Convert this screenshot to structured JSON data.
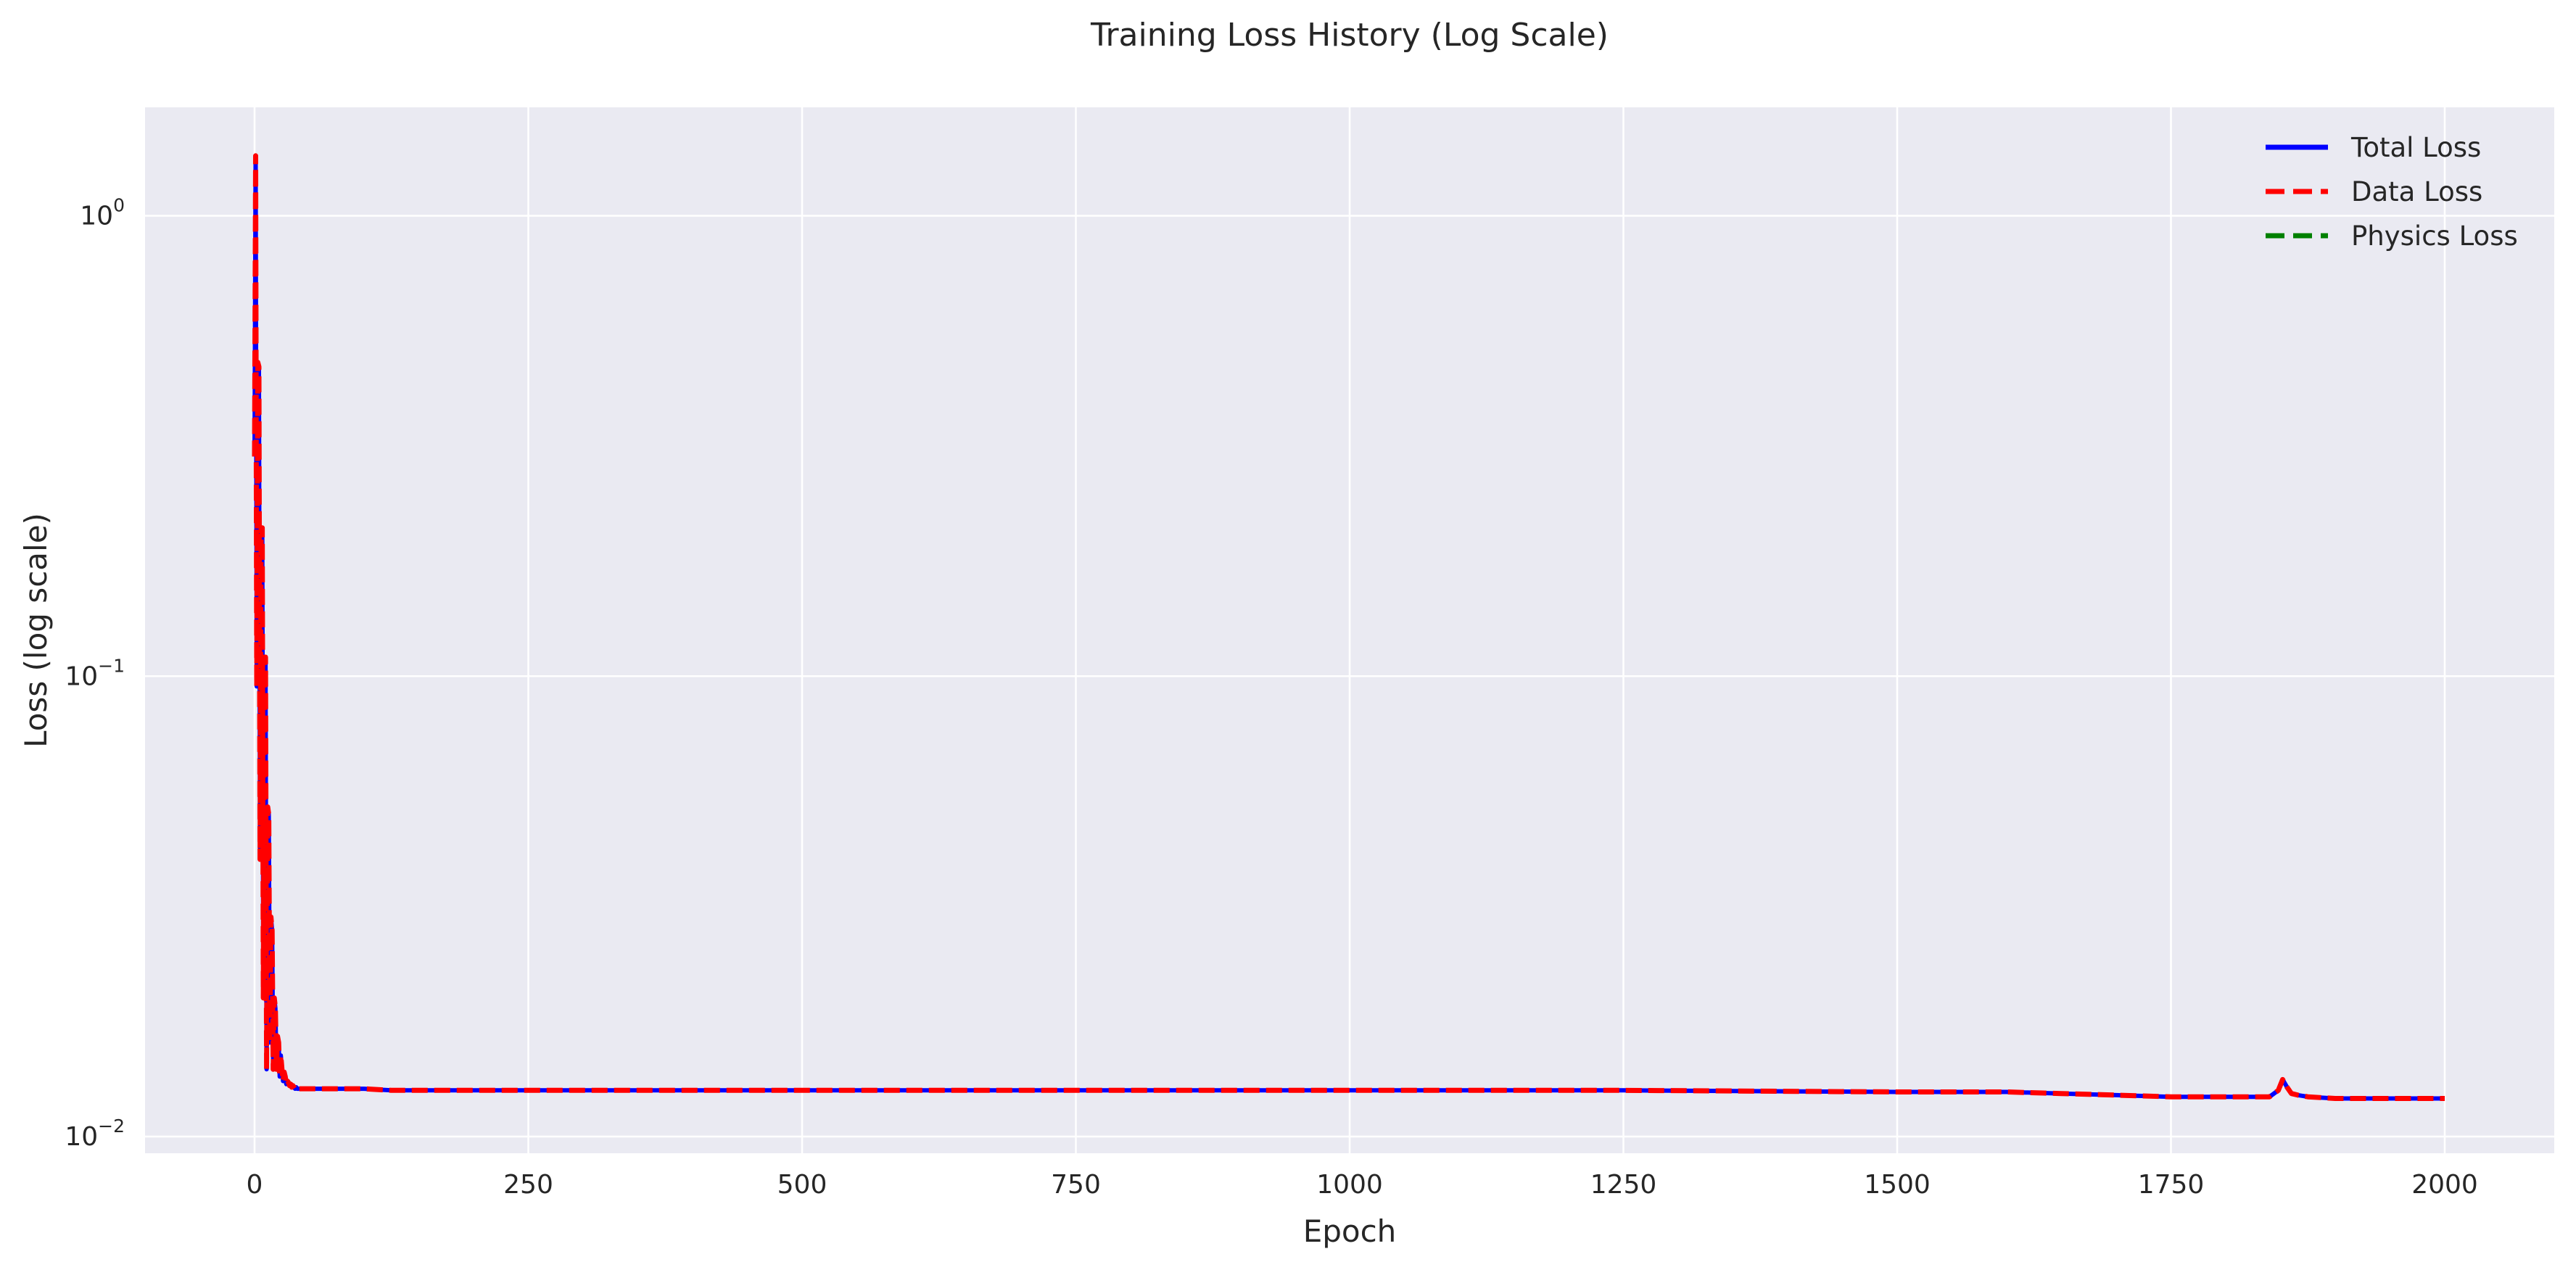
{
  "chart_data": {
    "type": "line",
    "title": "Training Loss History (Log Scale)",
    "xlabel": "Epoch",
    "ylabel": "Loss (log scale)",
    "yscale": "log",
    "xlim": [
      -100,
      2100
    ],
    "ylim": [
      0.0092,
      1.72
    ],
    "x_ticks": [
      0,
      250,
      500,
      750,
      1000,
      1250,
      1500,
      1750,
      2000
    ],
    "x_tick_labels": [
      "0",
      "250",
      "500",
      "750",
      "1000",
      "1250",
      "1500",
      "1750",
      "2000"
    ],
    "y_ticks": [
      0.01,
      0.1,
      1
    ],
    "y_tick_labels": [
      {
        "base": "10",
        "exp": "−2"
      },
      {
        "base": "10",
        "exp": "−1"
      },
      {
        "base": "10",
        "exp": "0"
      }
    ],
    "grid": true,
    "legend_position": "top-right",
    "series": [
      {
        "name": "Total Loss",
        "color": "#0000ff",
        "style": "solid",
        "x": [
          0,
          1,
          2,
          3,
          4,
          5,
          6,
          7,
          8,
          9,
          10,
          11,
          12,
          13,
          14,
          15,
          16,
          17,
          18,
          19,
          20,
          21,
          22,
          23,
          24,
          25,
          26,
          27,
          28,
          29,
          30,
          31,
          32,
          33,
          34,
          35,
          36,
          37,
          38,
          39,
          40,
          42,
          44,
          46,
          48,
          50,
          52,
          54,
          56,
          58,
          60,
          65,
          70,
          75,
          80,
          90,
          100,
          125,
          150,
          200,
          300,
          500,
          750,
          1000,
          1250,
          1500,
          1600,
          1650,
          1700,
          1750,
          1800,
          1840,
          1848,
          1852,
          1856,
          1860,
          1866,
          1875,
          1900,
          1950,
          2000
        ],
        "y": [
          0.3,
          1.35,
          0.095,
          0.48,
          0.47,
          0.04,
          0.21,
          0.21,
          0.02,
          0.11,
          0.11,
          0.014,
          0.052,
          0.05,
          0.016,
          0.03,
          0.028,
          0.014,
          0.02,
          0.019,
          0.014,
          0.0165,
          0.016,
          0.0135,
          0.015,
          0.014,
          0.0132,
          0.0138,
          0.0135,
          0.013,
          0.0132,
          0.0131,
          0.0129,
          0.013,
          0.0128,
          0.0129,
          0.0128,
          0.0127,
          0.0128,
          0.0127,
          0.0127,
          0.0127,
          0.0127,
          0.0127,
          0.0127,
          0.0127,
          0.0127,
          0.0127,
          0.0127,
          0.0127,
          0.0127,
          0.0127,
          0.0127,
          0.0127,
          0.0127,
          0.0127,
          0.0127,
          0.0126,
          0.0126,
          0.0126,
          0.0126,
          0.0126,
          0.0126,
          0.0126,
          0.0126,
          0.0125,
          0.0125,
          0.0124,
          0.0123,
          0.0122,
          0.0122,
          0.0122,
          0.0126,
          0.0133,
          0.0128,
          0.0124,
          0.0123,
          0.0122,
          0.0121,
          0.0121,
          0.0121
        ]
      },
      {
        "name": "Data Loss",
        "color": "#ff0000",
        "style": "dashed",
        "x": [
          0,
          1,
          2,
          3,
          4,
          5,
          6,
          7,
          8,
          9,
          10,
          11,
          12,
          13,
          14,
          15,
          16,
          17,
          18,
          19,
          20,
          21,
          22,
          23,
          24,
          25,
          26,
          27,
          28,
          29,
          30,
          31,
          32,
          33,
          34,
          35,
          36,
          37,
          38,
          39,
          40,
          42,
          44,
          46,
          48,
          50,
          52,
          54,
          56,
          58,
          60,
          65,
          70,
          75,
          80,
          90,
          100,
          125,
          150,
          200,
          300,
          500,
          750,
          1000,
          1250,
          1500,
          1600,
          1650,
          1700,
          1750,
          1800,
          1840,
          1848,
          1852,
          1856,
          1860,
          1866,
          1875,
          1900,
          1950,
          2000
        ],
        "y": [
          0.3,
          1.35,
          0.095,
          0.48,
          0.47,
          0.04,
          0.21,
          0.21,
          0.02,
          0.11,
          0.11,
          0.014,
          0.052,
          0.05,
          0.016,
          0.03,
          0.028,
          0.014,
          0.02,
          0.019,
          0.014,
          0.0165,
          0.016,
          0.0135,
          0.015,
          0.014,
          0.0132,
          0.0138,
          0.0135,
          0.013,
          0.0132,
          0.0131,
          0.0129,
          0.013,
          0.0128,
          0.0129,
          0.0128,
          0.0127,
          0.0128,
          0.0127,
          0.0127,
          0.0127,
          0.0127,
          0.0127,
          0.0127,
          0.0127,
          0.0127,
          0.0127,
          0.0127,
          0.0127,
          0.0127,
          0.0127,
          0.0127,
          0.0127,
          0.0127,
          0.0127,
          0.0127,
          0.0126,
          0.0126,
          0.0126,
          0.0126,
          0.0126,
          0.0126,
          0.0126,
          0.0126,
          0.0125,
          0.0125,
          0.0124,
          0.0123,
          0.0122,
          0.0122,
          0.0122,
          0.0126,
          0.0133,
          0.0128,
          0.0124,
          0.0123,
          0.0122,
          0.0121,
          0.0121,
          0.0121
        ]
      },
      {
        "name": "Physics Loss",
        "color": "#008000",
        "style": "dashed",
        "x": [],
        "y": []
      }
    ]
  }
}
